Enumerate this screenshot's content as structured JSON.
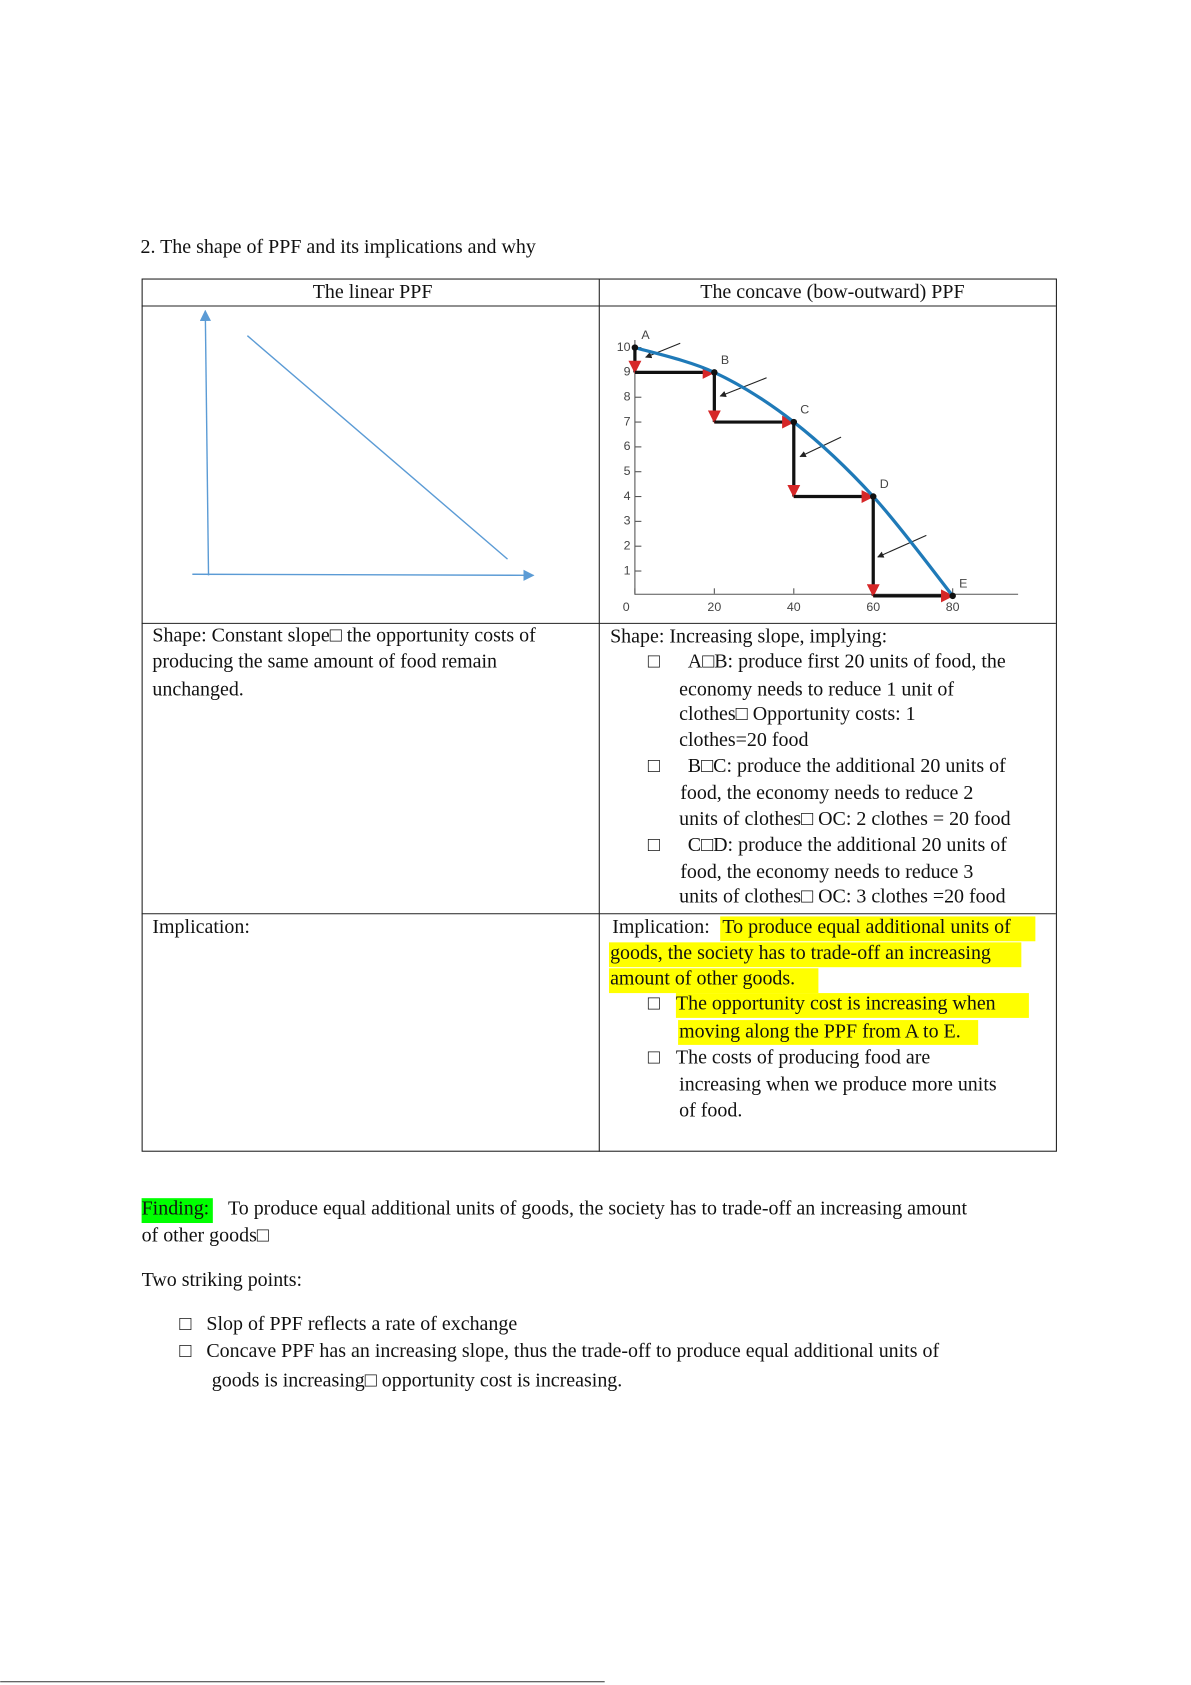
{
  "heading": "2. The shape of PPF and its implications and why",
  "table": {
    "headers": [
      "The linear PPF",
      "The concave (bow-outward) PPF"
    ],
    "concave_figure": {
      "xticks": [
        0,
        20,
        40,
        60,
        80
      ],
      "yticks": [
        1,
        2,
        3,
        4,
        5,
        6,
        7,
        8,
        9,
        10
      ],
      "points": [
        {
          "label": "A",
          "x": 0,
          "y": 10
        },
        {
          "label": "B",
          "x": 20,
          "y": 9
        },
        {
          "label": "C",
          "x": 40,
          "y": 7
        },
        {
          "label": "D",
          "x": 60,
          "y": 4
        },
        {
          "label": "E",
          "x": 80,
          "y": 0
        }
      ]
    },
    "shape": {
      "linear": [
        "Shape: Constant slope□ the opportunity costs of",
        "producing the same amount of food remain",
        "unchanged."
      ],
      "concave": {
        "intro": "Shape: Increasing slope, implying:",
        "bullet": "□",
        "items": [
          [
            "A□B: produce first 20 units of food, the",
            "economy needs to reduce 1 unit of",
            "clothes□ Opportunity costs: 1",
            "clothes=20 food"
          ],
          [
            "B□C: produce the additional 20 units of",
            "food, the economy needs to reduce 2",
            "units of clothes□ OC: 2 clothes = 20 food"
          ],
          [
            "C□D: produce the additional 20 units of",
            "food, the economy needs to reduce 3",
            "units of clothes□ OC: 3 clothes =20 food"
          ]
        ]
      }
    },
    "implication": {
      "linear": "Implication:",
      "concave": {
        "label": "Implication:",
        "lines": [
          "To produce equal additional units of",
          "goods, the society has to trade-off an increasing",
          "amount of other goods."
        ],
        "items": [
          [
            "The opportunity cost is increasing when",
            "moving along the PPF from A to E."
          ],
          [
            "The costs of producing food are",
            "increasing when we produce more units",
            "of food."
          ]
        ]
      }
    }
  },
  "finding": {
    "label": "Finding:",
    "lines": [
      "To produce equal additional units of goods, the society has to trade-off an increasing amount",
      "of other goods□"
    ]
  },
  "striking": {
    "title": "Two striking points:",
    "bullet": "□",
    "items": [
      [
        "Slop of PPF reflects a rate of exchange"
      ],
      [
        "Concave PPF has an increasing slope, thus the trade-off to produce equal additional units of",
        "goods is increasing□ opportunity cost is increasing."
      ]
    ]
  }
}
